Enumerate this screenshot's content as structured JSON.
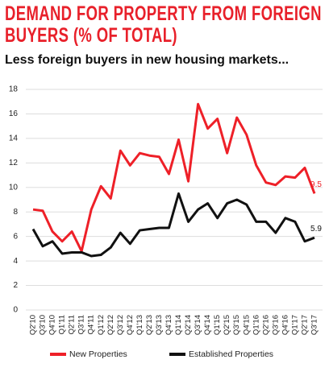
{
  "chart_data": {
    "type": "line",
    "title": "DEMAND FOR PROPERTY FROM FOREIGN BUYERS (% OF TOTAL)",
    "subtitle": "Less foreign buyers in new housing markets...",
    "categories": [
      "Q2'10",
      "Q3'10",
      "Q4'10",
      "Q1'11",
      "Q2'11",
      "Q3'11",
      "Q4'11",
      "Q1'12",
      "Q2'12",
      "Q3'12",
      "Q4'12",
      "Q1'13",
      "Q2'13",
      "Q3'13",
      "Q4'13",
      "Q1'14",
      "Q2'14",
      "Q3'14",
      "Q4'14",
      "Q1'15",
      "Q2'15",
      "Q3'15",
      "Q4'15",
      "Q1'16",
      "Q2'16",
      "Q3'16",
      "Q4'16",
      "Q1'17",
      "Q2'17",
      "Q3'17"
    ],
    "series": [
      {
        "name": "New Properties",
        "color": "#ee2028",
        "values": [
          8.2,
          8.1,
          6.4,
          5.6,
          6.4,
          4.8,
          8.2,
          10.1,
          9.1,
          13.0,
          11.8,
          12.8,
          12.6,
          12.5,
          11.1,
          13.9,
          10.5,
          16.8,
          14.8,
          15.6,
          12.8,
          15.7,
          14.3,
          11.8,
          10.4,
          10.2,
          10.9,
          10.8,
          11.6,
          9.5
        ]
      },
      {
        "name": "Established Properties",
        "color": "#111111",
        "values": [
          6.6,
          5.2,
          5.6,
          4.6,
          4.7,
          4.7,
          4.4,
          4.5,
          5.1,
          6.3,
          5.4,
          6.5,
          6.6,
          6.7,
          6.7,
          9.5,
          7.2,
          8.2,
          8.7,
          7.5,
          8.7,
          9.0,
          8.6,
          7.2,
          7.2,
          6.3,
          7.5,
          7.2,
          5.6,
          5.9
        ]
      }
    ],
    "ylim": [
      0,
      18
    ],
    "yticks": [
      0,
      2,
      4,
      6,
      8,
      10,
      12,
      14,
      16,
      18
    ],
    "grid": true,
    "legend": "bottom"
  }
}
